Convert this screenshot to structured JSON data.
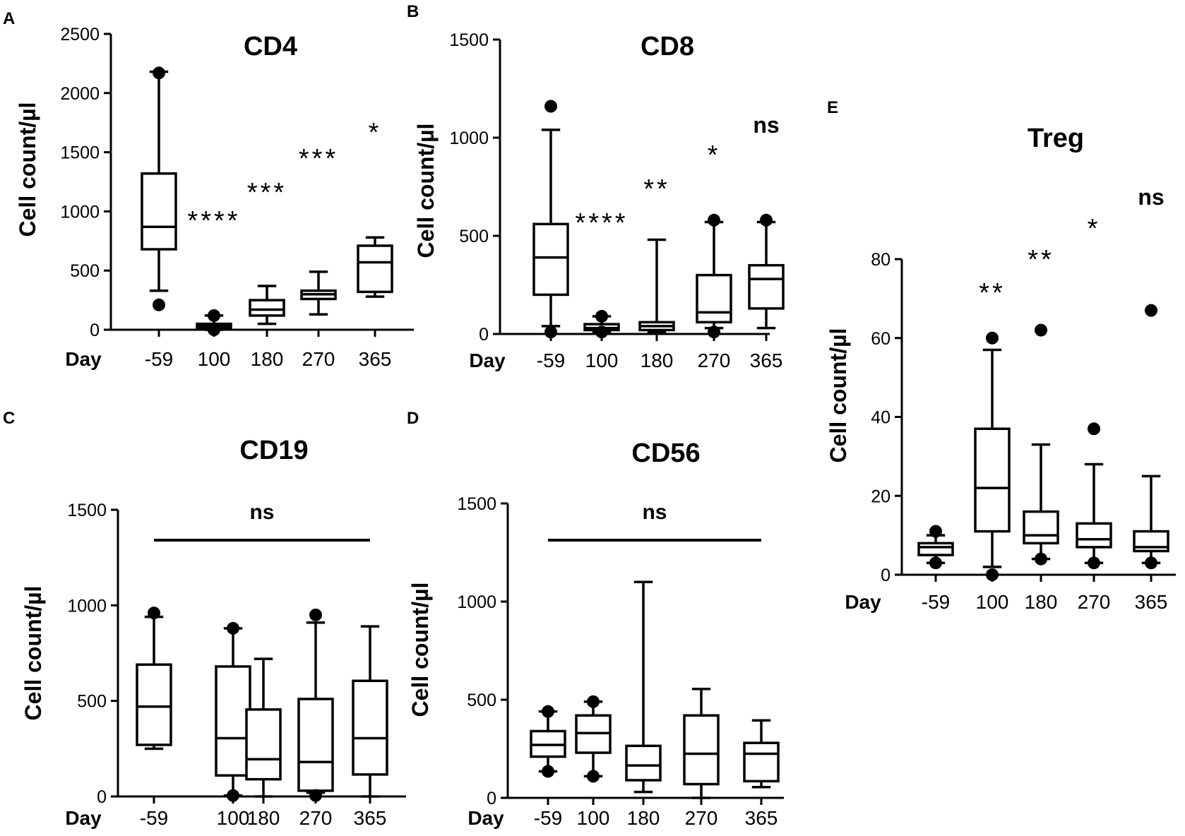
{
  "chart_data": [
    {
      "panel": "A",
      "type": "box",
      "title": "CD4",
      "ylabel": "Cell count/µl",
      "xlabel": "Day",
      "categories": [
        "-59",
        "100",
        "180",
        "270",
        "365"
      ],
      "ylim": [
        0,
        2500
      ],
      "yticks": [
        0,
        500,
        1000,
        1500,
        2000,
        2500
      ],
      "boxes": [
        {
          "min": 330,
          "q1": 680,
          "median": 870,
          "q3": 1320,
          "max": 2180,
          "outliers": [
            210,
            2170
          ]
        },
        {
          "min": 0,
          "q1": 10,
          "median": 30,
          "q3": 50,
          "max": 120,
          "outliers": [
            120,
            0
          ]
        },
        {
          "min": 50,
          "q1": 120,
          "median": 170,
          "q3": 250,
          "max": 370,
          "outliers": []
        },
        {
          "min": 130,
          "q1": 260,
          "median": 300,
          "q3": 330,
          "max": 490,
          "outliers": []
        },
        {
          "min": 280,
          "q1": 320,
          "median": 570,
          "q3": 710,
          "max": 780,
          "outliers": []
        }
      ],
      "annotations": [
        {
          "x_index": 1,
          "y": 900,
          "text": "****"
        },
        {
          "x_index": 2,
          "y": 1150,
          "text": "***"
        },
        {
          "x_index": 3,
          "y": 1400,
          "text": "***"
        },
        {
          "x_index": 4,
          "y": 1650,
          "text": "*"
        }
      ]
    },
    {
      "panel": "B",
      "type": "box",
      "title": "CD8",
      "ylabel": "Cell count/µl",
      "xlabel": "Day",
      "categories": [
        "-59",
        "100",
        "180",
        "270",
        "365"
      ],
      "ylim": [
        0,
        1500
      ],
      "yticks": [
        0,
        500,
        1000,
        1500
      ],
      "boxes": [
        {
          "min": 40,
          "q1": 200,
          "median": 390,
          "q3": 560,
          "max": 1040,
          "outliers": [
            1160,
            10
          ]
        },
        {
          "min": 10,
          "q1": 20,
          "median": 30,
          "q3": 50,
          "max": 90,
          "outliers": [
            90,
            10
          ]
        },
        {
          "min": 10,
          "q1": 20,
          "median": 40,
          "q3": 60,
          "max": 480,
          "outliers": []
        },
        {
          "min": 30,
          "q1": 60,
          "median": 110,
          "q3": 300,
          "max": 570,
          "outliers": [
            580,
            10
          ]
        },
        {
          "min": 30,
          "q1": 130,
          "median": 280,
          "q3": 350,
          "max": 570,
          "outliers": [
            580
          ]
        }
      ],
      "annotations": [
        {
          "x_index": 1,
          "y": 580,
          "text": "****"
        },
        {
          "x_index": 2,
          "y": 770,
          "text": "**"
        },
        {
          "x_index": 3,
          "y": 900,
          "text": "*"
        },
        {
          "x_index": 4,
          "y": 1050,
          "text": "ns"
        }
      ]
    },
    {
      "panel": "C",
      "type": "box",
      "title": "CD19",
      "ylabel": "Cell count/µl",
      "xlabel": "Day",
      "categories": [
        "-59",
        "100",
        "180",
        "270",
        "365"
      ],
      "ylim": [
        0,
        1500
      ],
      "yticks": [
        0,
        500,
        1000,
        1500
      ],
      "boxes": [
        {
          "min": 250,
          "q1": 270,
          "median": 470,
          "q3": 690,
          "max": 940,
          "outliers": [
            960
          ]
        },
        {
          "min": 5,
          "q1": 110,
          "median": 305,
          "q3": 680,
          "max": 880,
          "outliers": [
            880,
            5
          ]
        },
        {
          "min": 0,
          "q1": 90,
          "median": 195,
          "q3": 455,
          "max": 720,
          "outliers": []
        },
        {
          "min": 20,
          "q1": 30,
          "median": 180,
          "q3": 510,
          "max": 910,
          "outliers": [
            950,
            5
          ]
        },
        {
          "min": 0,
          "q1": 115,
          "median": 305,
          "q3": 605,
          "max": 890,
          "outliers": []
        }
      ],
      "annotations": [
        {
          "x_index": 2,
          "y": 1450,
          "text": "ns",
          "bracket": true
        }
      ]
    },
    {
      "panel": "D",
      "type": "box",
      "title": "CD56",
      "ylabel": "Cell count/µl",
      "xlabel": "Day",
      "categories": [
        "-59",
        "100",
        "180",
        "270",
        "365"
      ],
      "ylim": [
        0,
        1500
      ],
      "yticks": [
        0,
        500,
        1000,
        1500
      ],
      "boxes": [
        {
          "min": 135,
          "q1": 210,
          "median": 270,
          "q3": 340,
          "max": 440,
          "outliers": [
            440,
            135
          ]
        },
        {
          "min": 110,
          "q1": 230,
          "median": 330,
          "q3": 420,
          "max": 490,
          "outliers": [
            490,
            110
          ]
        },
        {
          "min": 30,
          "q1": 90,
          "median": 165,
          "q3": 265,
          "max": 1100,
          "outliers": []
        },
        {
          "min": 0,
          "q1": 70,
          "median": 225,
          "q3": 420,
          "max": 555,
          "outliers": []
        },
        {
          "min": 55,
          "q1": 85,
          "median": 225,
          "q3": 280,
          "max": 395,
          "outliers": []
        }
      ],
      "annotations": [
        {
          "x_index": 2,
          "y": 1450,
          "text": "ns",
          "bracket": true
        }
      ]
    },
    {
      "panel": "E",
      "type": "box",
      "title": "Treg",
      "ylabel": "Cell count/µl",
      "xlabel": "Day",
      "categories": [
        "-59",
        "100",
        "180",
        "270",
        "365"
      ],
      "ylim": [
        0,
        80
      ],
      "yticks": [
        0,
        20,
        40,
        60,
        80
      ],
      "boxes": [
        {
          "min": 3,
          "q1": 5,
          "median": 7,
          "q3": 8,
          "max": 10,
          "outliers": [
            11,
            3
          ]
        },
        {
          "min": 2,
          "q1": 11,
          "median": 22,
          "q3": 37,
          "max": 57,
          "outliers": [
            60,
            0
          ]
        },
        {
          "min": 4,
          "q1": 8,
          "median": 10,
          "q3": 16,
          "max": 33,
          "outliers": [
            62,
            4
          ]
        },
        {
          "min": 3,
          "q1": 7,
          "median": 9,
          "q3": 13,
          "max": 28,
          "outliers": [
            37,
            3
          ]
        },
        {
          "min": 3,
          "q1": 6,
          "median": 7,
          "q3": 11,
          "max": 25,
          "outliers": [
            67,
            3
          ]
        }
      ],
      "annotations": [
        {
          "x_index": 1,
          "y": 74,
          "text": "**"
        },
        {
          "x_index": 2,
          "y": 82,
          "text": "**"
        },
        {
          "x_index": 3,
          "y": 90,
          "text": "*"
        },
        {
          "x_index": 4,
          "y": 100,
          "text": "ns"
        }
      ]
    }
  ]
}
